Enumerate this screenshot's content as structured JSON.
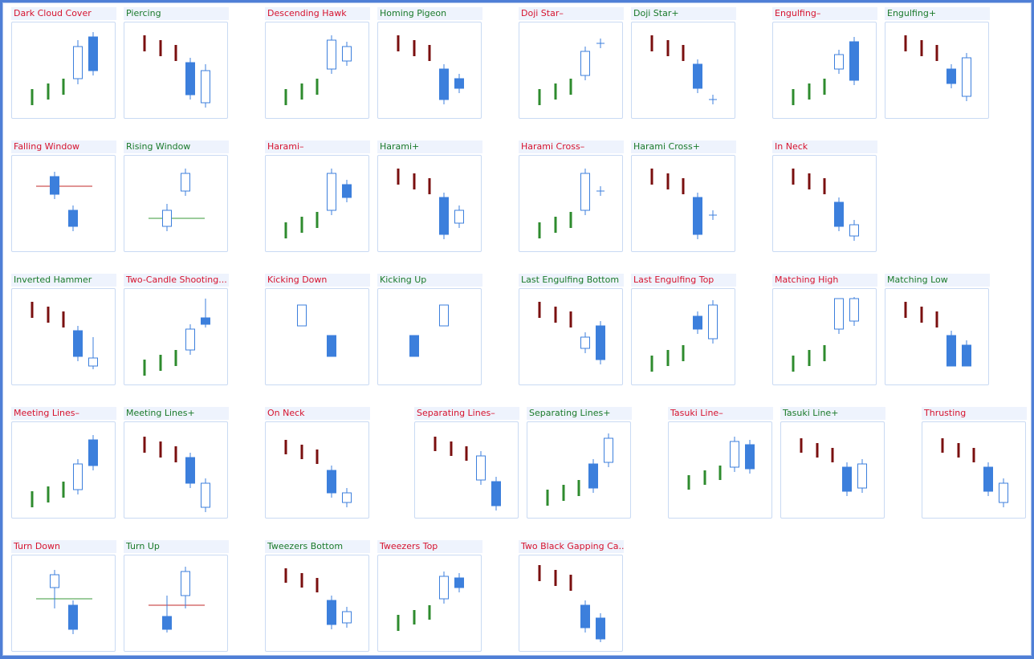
{
  "colors": {
    "bull_small": "#2e8b2e",
    "bear_small": "#7a0f0f",
    "bull_big": "#ffffff",
    "bull_big_stroke": "#3c7fdc",
    "bear_big": "#3c7fdc",
    "label_negative": "#d6132e",
    "label_positive": "#1a7a2a",
    "level_red": "#c22a2a",
    "level_green": "#3a9a3a"
  },
  "patterns": [
    {
      "name": "Dark Cloud Cover",
      "sentiment": "negative",
      "icon": "dark-cloud-cover-icon"
    },
    {
      "name": "Piercing",
      "sentiment": "positive",
      "icon": "piercing-icon"
    },
    {
      "name": "Descending Hawk",
      "sentiment": "negative",
      "icon": "descending-hawk-icon"
    },
    {
      "name": "Homing Pigeon",
      "sentiment": "positive",
      "icon": "homing-pigeon-icon"
    },
    {
      "name": "Doji Star–",
      "sentiment": "negative",
      "icon": "doji-star-bearish-icon"
    },
    {
      "name": "Doji Star+",
      "sentiment": "positive",
      "icon": "doji-star-bullish-icon"
    },
    {
      "name": "Engulfing–",
      "sentiment": "negative",
      "icon": "engulfing-bearish-icon"
    },
    {
      "name": "Engulfing+",
      "sentiment": "positive",
      "icon": "engulfing-bullish-icon"
    },
    {
      "name": "Falling Window",
      "sentiment": "negative",
      "icon": "falling-window-icon"
    },
    {
      "name": "Rising Window",
      "sentiment": "positive",
      "icon": "rising-window-icon"
    },
    {
      "name": "Harami–",
      "sentiment": "negative",
      "icon": "harami-bearish-icon"
    },
    {
      "name": "Harami+",
      "sentiment": "positive",
      "icon": "harami-bullish-icon"
    },
    {
      "name": "Harami Cross–",
      "sentiment": "negative",
      "icon": "harami-cross-bearish-icon"
    },
    {
      "name": "Harami Cross+",
      "sentiment": "positive",
      "icon": "harami-cross-bullish-icon"
    },
    {
      "name": "In Neck",
      "sentiment": "negative",
      "icon": "in-neck-icon"
    },
    {
      "name": "Inverted Hammer",
      "sentiment": "positive",
      "icon": "inverted-hammer-icon"
    },
    {
      "name": "Two-Candle Shooting...",
      "sentiment": "negative",
      "icon": "two-candle-shooting-star-icon"
    },
    {
      "name": "Kicking Down",
      "sentiment": "negative",
      "icon": "kicking-down-icon"
    },
    {
      "name": "Kicking Up",
      "sentiment": "positive",
      "icon": "kicking-up-icon"
    },
    {
      "name": "Last Engulfing Bottom",
      "sentiment": "positive",
      "icon": "last-engulfing-bottom-icon"
    },
    {
      "name": "Last Engulfing Top",
      "sentiment": "negative",
      "icon": "last-engulfing-top-icon"
    },
    {
      "name": "Matching High",
      "sentiment": "negative",
      "icon": "matching-high-icon"
    },
    {
      "name": "Matching Low",
      "sentiment": "positive",
      "icon": "matching-low-icon"
    },
    {
      "name": "Meeting Lines–",
      "sentiment": "negative",
      "icon": "meeting-lines-bearish-icon"
    },
    {
      "name": "Meeting Lines+",
      "sentiment": "positive",
      "icon": "meeting-lines-bullish-icon"
    },
    {
      "name": "On Neck",
      "sentiment": "negative",
      "icon": "on-neck-icon"
    },
    {
      "name": "Separating Lines–",
      "sentiment": "negative",
      "icon": "separating-lines-bearish-icon"
    },
    {
      "name": "Separating Lines+",
      "sentiment": "positive",
      "icon": "separating-lines-bullish-icon"
    },
    {
      "name": "Tasuki Line–",
      "sentiment": "negative",
      "icon": "tasuki-line-bearish-icon"
    },
    {
      "name": "Tasuki Line+",
      "sentiment": "positive",
      "icon": "tasuki-line-bullish-icon"
    },
    {
      "name": "Thrusting",
      "sentiment": "negative",
      "icon": "thrusting-icon"
    },
    {
      "name": "Turn Down",
      "sentiment": "negative",
      "icon": "turn-down-icon"
    },
    {
      "name": "Turn Up",
      "sentiment": "positive",
      "icon": "turn-up-icon"
    },
    {
      "name": "Tweezers Bottom",
      "sentiment": "positive",
      "icon": "tweezers-bottom-icon"
    },
    {
      "name": "Tweezers Top",
      "sentiment": "negative",
      "icon": "tweezers-top-icon"
    },
    {
      "name": "Two Black Gapping Ca...",
      "sentiment": "negative",
      "icon": "two-black-gapping-candles-icon"
    }
  ]
}
